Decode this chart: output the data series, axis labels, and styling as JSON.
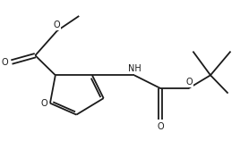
{
  "bg_color": "#ffffff",
  "line_color": "#1a1a1a",
  "line_width": 1.3,
  "font_color": "#1a1a1a",
  "font_size": 7.0,
  "figsize": [
    2.68,
    1.76
  ],
  "dpi": 100,
  "xlim": [
    0,
    10.5
  ],
  "ylim": [
    0,
    6.5
  ]
}
